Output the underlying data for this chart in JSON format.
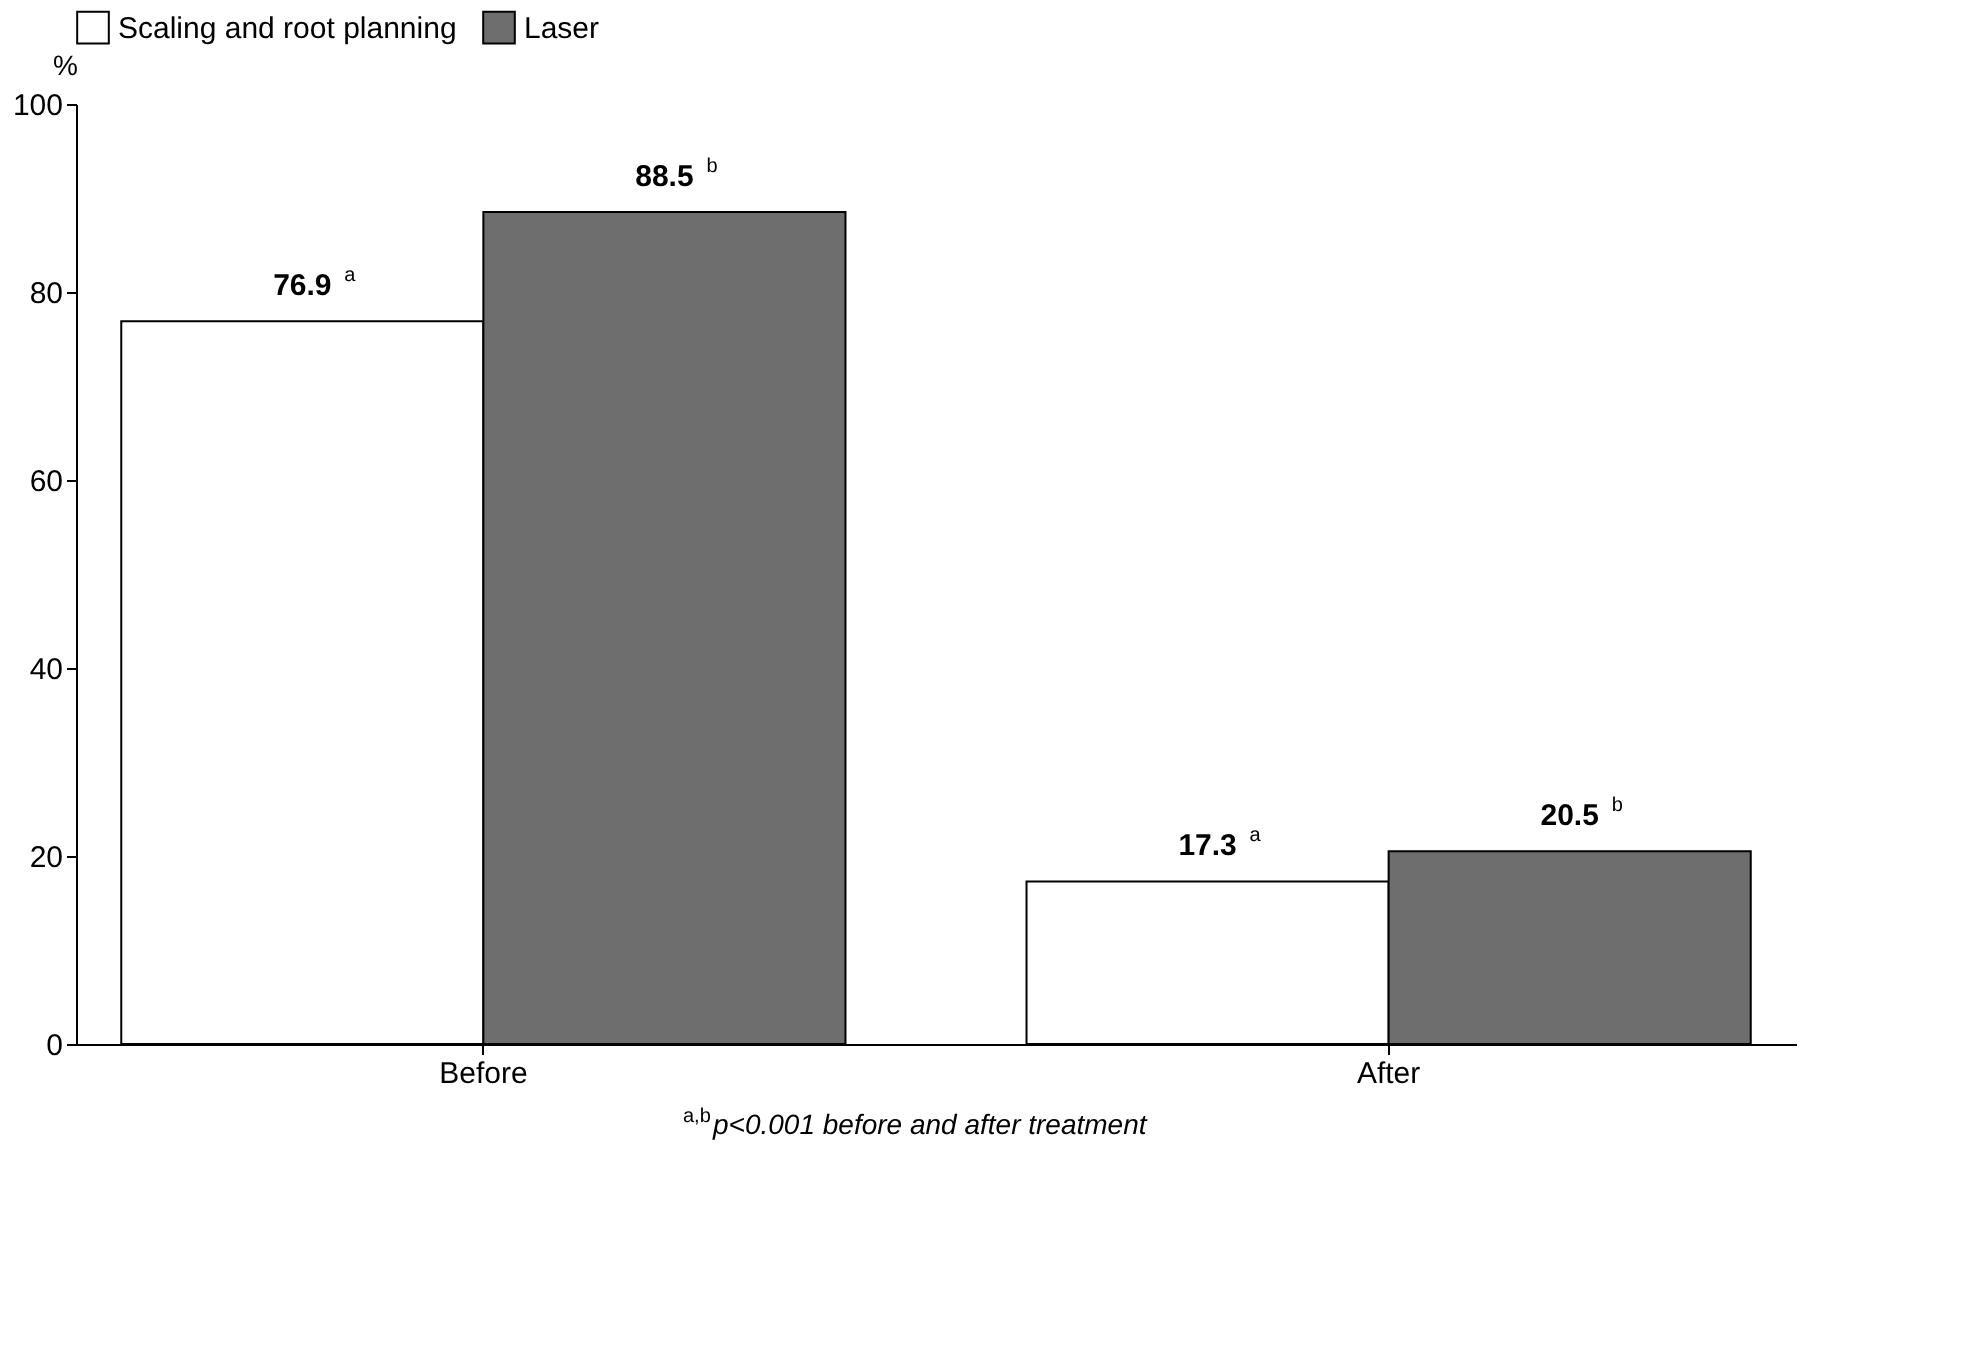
{
  "chart_data": {
    "type": "bar",
    "categories": [
      "Before",
      "After"
    ],
    "series": [
      {
        "name": "Scaling and root planning",
        "color": "#ffffff",
        "values": [
          76.9,
          17.3
        ],
        "value_labels": [
          "76.9$^{a}$",
          "17.3$^{a}$"
        ]
      },
      {
        "name": "Laser",
        "color": "#6e6e6e",
        "values": [
          88.5,
          20.5
        ],
        "value_labels": [
          "88.5$^{b}$",
          "20.5$^{b}$"
        ]
      }
    ],
    "ylabel": "%",
    "ylim": [
      0,
      100
    ],
    "yticks": [
      0,
      20,
      40,
      60,
      80,
      100
    ],
    "legend": "top",
    "annotations": [
      "$^{a,b}$p<0.001 before and after treatment"
    ]
  }
}
